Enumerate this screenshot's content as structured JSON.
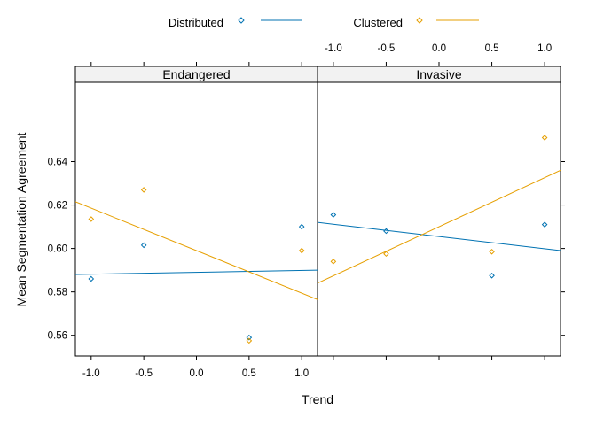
{
  "chart_data": {
    "type": "scatter",
    "xlabel": "Trend",
    "ylabel": "Mean Segmentation Agreement",
    "xlim": [
      -1.15,
      1.15
    ],
    "ylim": [
      0.5505,
      0.6765
    ],
    "x_ticks": [
      "-1.0",
      "-0.5",
      "0.0",
      "0.5",
      "1.0"
    ],
    "x_tick_values": [
      -1.0,
      -0.5,
      0.0,
      0.5,
      1.0
    ],
    "y_ticks": [
      "0.56",
      "0.58",
      "0.60",
      "0.62",
      "0.64"
    ],
    "y_tick_values": [
      0.56,
      0.58,
      0.6,
      0.62,
      0.64
    ],
    "legend_position": "top",
    "legend": [
      {
        "name": "Distributed",
        "color": "#0072B2"
      },
      {
        "name": "Clustered",
        "color": "#E69F00"
      }
    ],
    "panels": [
      {
        "strip": "Endangered",
        "series": [
          {
            "name": "Distributed",
            "color": "#0072B2",
            "x": [
              -1.0,
              -0.5,
              0.5,
              1.0
            ],
            "y": [
              0.586,
              0.6015,
              0.559,
              0.61
            ],
            "fit": {
              "x": [
                -1.15,
                1.15
              ],
              "y": [
                0.588,
                0.59
              ]
            }
          },
          {
            "name": "Clustered",
            "color": "#E69F00",
            "x": [
              -1.0,
              -0.5,
              0.5,
              1.0
            ],
            "y": [
              0.6135,
              0.627,
              0.5575,
              0.599
            ],
            "fit": {
              "x": [
                -1.15,
                1.15
              ],
              "y": [
                0.6215,
                0.5765
              ]
            }
          }
        ]
      },
      {
        "strip": "Invasive",
        "series": [
          {
            "name": "Distributed",
            "color": "#0072B2",
            "x": [
              -1.0,
              -0.5,
              0.5,
              1.0
            ],
            "y": [
              0.6155,
              0.608,
              0.5875,
              0.611
            ],
            "fit": {
              "x": [
                -1.15,
                1.15
              ],
              "y": [
                0.612,
                0.599
              ]
            }
          },
          {
            "name": "Clustered",
            "color": "#E69F00",
            "x": [
              -1.0,
              -0.5,
              0.5,
              1.0
            ],
            "y": [
              0.594,
              0.5975,
              0.5985,
              0.651
            ],
            "fit": {
              "x": [
                -1.15,
                1.15
              ],
              "y": [
                0.584,
                0.636
              ]
            }
          }
        ]
      }
    ]
  }
}
